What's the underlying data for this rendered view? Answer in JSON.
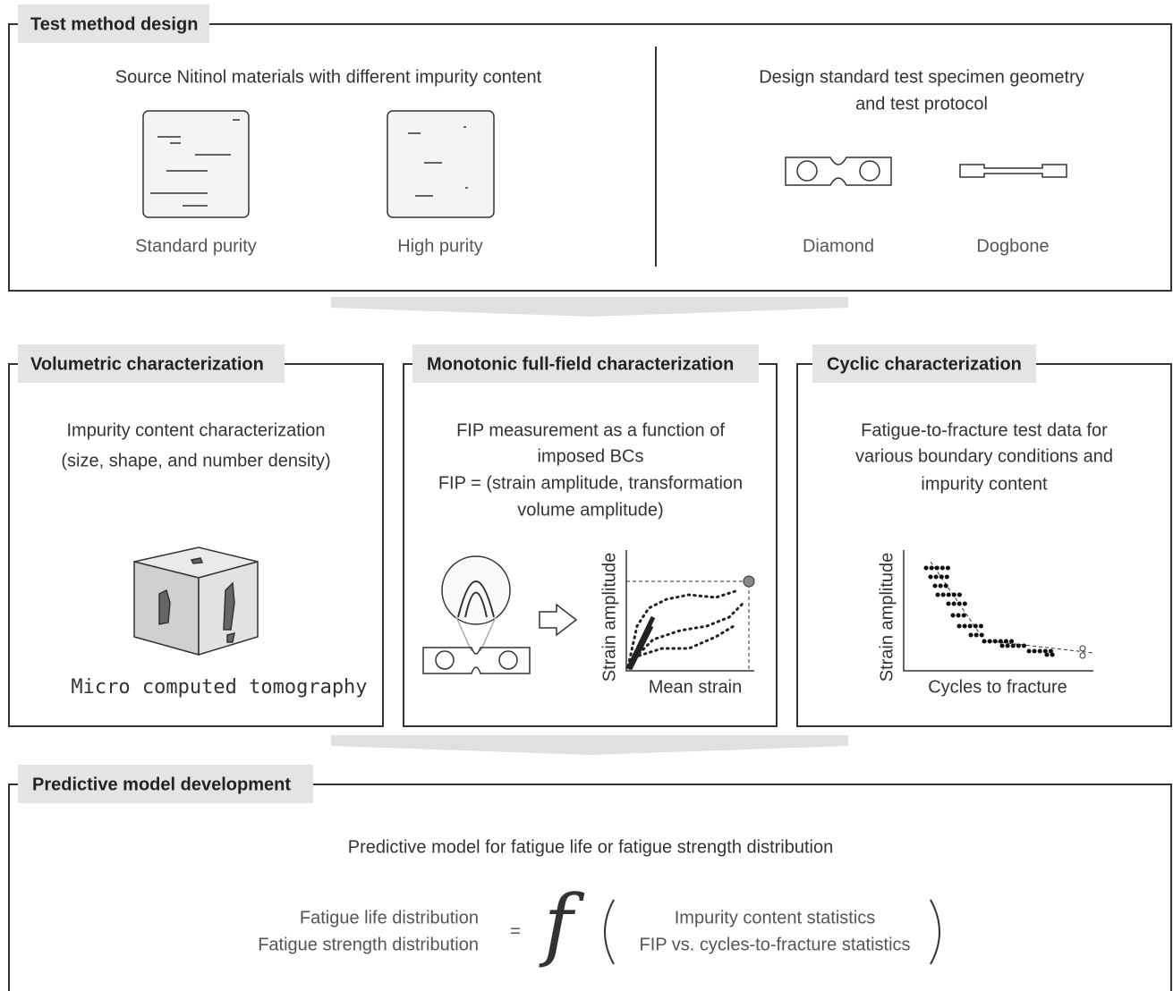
{
  "sections": [
    {
      "title": "Test method design",
      "panels": [
        {
          "heading": [
            "Source Nitinol materials with different impurity content"
          ],
          "labels": [
            "Standard purity",
            "High purity"
          ]
        },
        {
          "heading": [
            "Design standard test specimen geometry",
            "and test protocol"
          ],
          "labels": [
            "Diamond",
            "Dogbone"
          ]
        }
      ]
    },
    {
      "title": "Volumetric characterization",
      "heading": [
        "Impurity content characterization",
        "(size, shape, and number density)"
      ],
      "caption": "Micro computed tomography"
    },
    {
      "title": "Monotonic full-field characterization",
      "heading": [
        "FIP measurement as a function of",
        "imposed BCs",
        "FIP = (strain amplitude, transformation",
        "volume amplitude)"
      ],
      "y_axis": "Strain amplitude",
      "x_axis": "Mean strain"
    },
    {
      "title": "Cyclic characterization",
      "heading": [
        "Fatigue-to-fracture test data for",
        "various boundary conditions and",
        "impurity content"
      ],
      "y_axis": "Strain amplitude",
      "x_axis": "Cycles to fracture"
    },
    {
      "title": "Predictive model development",
      "heading": "Predictive model for fatigue life or fatigue strength distribution",
      "lhs": [
        "Fatigue life distribution",
        "Fatigue strength distribution"
      ],
      "equals": "=",
      "function": "f",
      "rhs": [
        "Impurity content statistics",
        "FIP vs. cycles-to-fracture statistics"
      ]
    }
  ]
}
